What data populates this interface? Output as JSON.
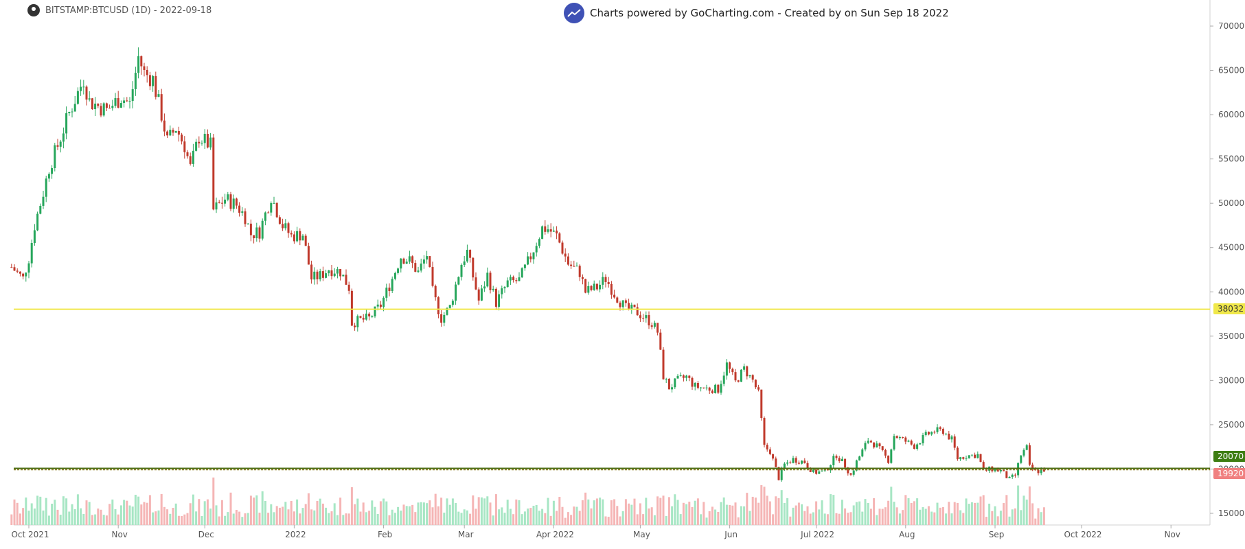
{
  "header": {
    "symbol_label": "BITSTAMP:BTCUSD (1D) - 2022-09-18",
    "watermark": "Charts powered by GoCharting.com - Created by  on Sun Sep 18 2022"
  },
  "colors": {
    "up": "#26a65b",
    "down": "#c0392b",
    "vol_up": "#a7e6c4",
    "vol_down": "#f5b5b5",
    "yellow_line": "#f0e84a",
    "olive_line": "#4a6b10",
    "badge_green": "#3d7d12",
    "badge_red": "#f08080"
  },
  "badges": {
    "yellow_value": "38032",
    "green_value": "20070",
    "red_value": "19920"
  },
  "chart_data": {
    "type": "candlestick",
    "title": "BITSTAMP:BTCUSD (1D) - 2022-09-18",
    "y_ticks": [
      15000,
      20000,
      25000,
      30000,
      35000,
      40000,
      45000,
      50000,
      55000,
      60000,
      65000,
      70000
    ],
    "x_labels": [
      {
        "label": "Oct 2021",
        "date": "2021-10-01"
      },
      {
        "label": "Nov",
        "date": "2021-11-01"
      },
      {
        "label": "Dec",
        "date": "2021-12-01"
      },
      {
        "label": "2022",
        "date": "2022-01-01"
      },
      {
        "label": "Feb",
        "date": "2022-02-01"
      },
      {
        "label": "Mar",
        "date": "2022-03-01"
      },
      {
        "label": "Apr 2022",
        "date": "2022-04-01"
      },
      {
        "label": "May",
        "date": "2022-05-01"
      },
      {
        "label": "Jun",
        "date": "2022-06-01"
      },
      {
        "label": "Jul 2022",
        "date": "2022-07-01"
      },
      {
        "label": "Aug",
        "date": "2022-08-01"
      },
      {
        "label": "Sep",
        "date": "2022-09-01"
      },
      {
        "label": "Oct 2022",
        "date": "2022-10-01"
      },
      {
        "label": "Nov",
        "date": "2022-11-01"
      }
    ],
    "horizontal_lines": [
      {
        "value": 38032
      },
      {
        "value": 20070
      },
      {
        "value": 19920
      }
    ],
    "price_path": [
      [
        "2021-09-25",
        42800
      ],
      [
        "2021-09-29",
        41500
      ],
      [
        "2021-10-01",
        43800
      ],
      [
        "2021-10-03",
        47500
      ],
      [
        "2021-10-06",
        51200
      ],
      [
        "2021-10-08",
        54000
      ],
      [
        "2021-10-11",
        56500
      ],
      [
        "2021-10-15",
        60200
      ],
      [
        "2021-10-20",
        64000
      ],
      [
        "2021-10-22",
        61500
      ],
      [
        "2021-10-25",
        61000
      ],
      [
        "2021-10-28",
        60500
      ],
      [
        "2021-11-02",
        62000
      ],
      [
        "2021-11-05",
        61200
      ],
      [
        "2021-11-08",
        66500
      ],
      [
        "2021-11-10",
        64700
      ],
      [
        "2021-11-13",
        64000
      ],
      [
        "2021-11-16",
        60000
      ],
      [
        "2021-11-18",
        57000
      ],
      [
        "2021-11-21",
        58500
      ],
      [
        "2021-11-24",
        56500
      ],
      [
        "2021-11-26",
        54000
      ],
      [
        "2021-11-29",
        57500
      ],
      [
        "2021-12-03",
        56500
      ],
      [
        "2021-12-04",
        49200
      ],
      [
        "2021-12-08",
        50500
      ],
      [
        "2021-12-12",
        49800
      ],
      [
        "2021-12-15",
        48500
      ],
      [
        "2021-12-17",
        46500
      ],
      [
        "2021-12-20",
        46800
      ],
      [
        "2021-12-24",
        50800
      ],
      [
        "2021-12-28",
        47500
      ],
      [
        "2021-12-31",
        46300
      ],
      [
        "2022-01-04",
        46500
      ],
      [
        "2022-01-07",
        41500
      ],
      [
        "2022-01-10",
        41800
      ],
      [
        "2022-01-13",
        42600
      ],
      [
        "2022-01-17",
        42300
      ],
      [
        "2022-01-20",
        40500
      ],
      [
        "2022-01-21",
        36500
      ],
      [
        "2022-01-24",
        36800
      ],
      [
        "2022-01-27",
        37000
      ],
      [
        "2022-01-31",
        38500
      ],
      [
        "2022-02-04",
        41500
      ],
      [
        "2022-02-07",
        44000
      ],
      [
        "2022-02-10",
        43500
      ],
      [
        "2022-02-13",
        42200
      ],
      [
        "2022-02-16",
        44200
      ],
      [
        "2022-02-18",
        40000
      ],
      [
        "2022-02-21",
        37000
      ],
      [
        "2022-02-24",
        38300
      ],
      [
        "2022-02-28",
        43200
      ],
      [
        "2022-03-02",
        44500
      ],
      [
        "2022-03-06",
        39000
      ],
      [
        "2022-03-09",
        41900
      ],
      [
        "2022-03-12",
        38800
      ],
      [
        "2022-03-16",
        41000
      ],
      [
        "2022-03-20",
        41300
      ],
      [
        "2022-03-24",
        44000
      ],
      [
        "2022-03-28",
        47200
      ],
      [
        "2022-03-30",
        47100
      ],
      [
        "2022-04-02",
        46300
      ],
      [
        "2022-04-06",
        43200
      ],
      [
        "2022-04-10",
        42200
      ],
      [
        "2022-04-12",
        40000
      ],
      [
        "2022-04-16",
        40500
      ],
      [
        "2022-04-19",
        41500
      ],
      [
        "2022-04-22",
        39800
      ],
      [
        "2022-04-26",
        38100
      ],
      [
        "2022-04-30",
        37700
      ],
      [
        "2022-05-05",
        36500
      ],
      [
        "2022-05-07",
        35500
      ],
      [
        "2022-05-09",
        30500
      ],
      [
        "2022-05-11",
        29200
      ],
      [
        "2022-05-14",
        30000
      ],
      [
        "2022-05-17",
        30400
      ],
      [
        "2022-05-20",
        29300
      ],
      [
        "2022-05-24",
        29100
      ],
      [
        "2022-05-28",
        29000
      ],
      [
        "2022-05-31",
        31800
      ],
      [
        "2022-06-03",
        29800
      ],
      [
        "2022-06-06",
        31300
      ],
      [
        "2022-06-09",
        30000
      ],
      [
        "2022-06-11",
        28500
      ],
      [
        "2022-06-13",
        22500
      ],
      [
        "2022-06-15",
        22000
      ],
      [
        "2022-06-18",
        19000
      ],
      [
        "2022-06-20",
        20500
      ],
      [
        "2022-06-23",
        21100
      ],
      [
        "2022-06-27",
        20800
      ],
      [
        "2022-06-30",
        19600
      ],
      [
        "2022-07-04",
        19700
      ],
      [
        "2022-07-08",
        21600
      ],
      [
        "2022-07-11",
        20400
      ],
      [
        "2022-07-13",
        19300
      ],
      [
        "2022-07-15",
        20800
      ],
      [
        "2022-07-19",
        23300
      ],
      [
        "2022-07-22",
        22600
      ],
      [
        "2022-07-26",
        21000
      ],
      [
        "2022-07-28",
        23800
      ],
      [
        "2022-07-31",
        23300
      ],
      [
        "2022-08-04",
        22600
      ],
      [
        "2022-08-08",
        23800
      ],
      [
        "2022-08-11",
        24300
      ],
      [
        "2022-08-14",
        24300
      ],
      [
        "2022-08-17",
        23300
      ],
      [
        "2022-08-19",
        21200
      ],
      [
        "2022-08-22",
        21500
      ],
      [
        "2022-08-26",
        21600
      ],
      [
        "2022-08-28",
        19800
      ],
      [
        "2022-08-31",
        20000
      ],
      [
        "2022-09-03",
        19800
      ],
      [
        "2022-09-06",
        18800
      ],
      [
        "2022-09-08",
        19300
      ],
      [
        "2022-09-10",
        21600
      ],
      [
        "2022-09-12",
        22400
      ],
      [
        "2022-09-13",
        20200
      ],
      [
        "2022-09-15",
        19700
      ],
      [
        "2022-09-18",
        19920
      ]
    ]
  }
}
